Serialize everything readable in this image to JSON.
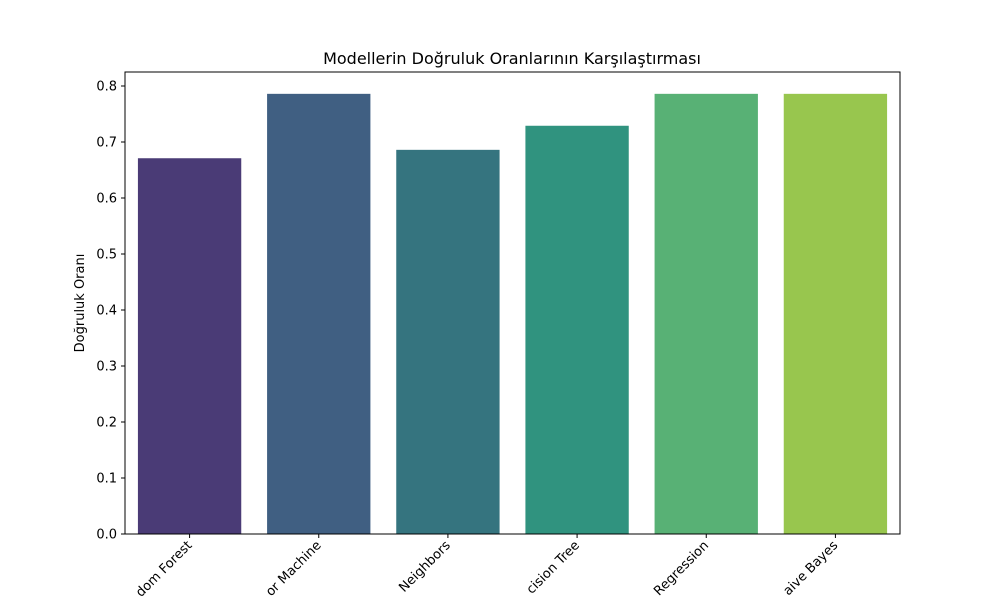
{
  "chart_data": {
    "type": "bar",
    "title": "Modellerin Doğruluk Oranlarının Karşılaştırması",
    "xlabel": "",
    "ylabel": "Doğruluk Oranı",
    "categories": [
      "Random Forest",
      "Support Vector Machine",
      "K-Nearest Neighbors",
      "Decision Tree",
      "Logistic Regression",
      "Naive Bayes"
    ],
    "visible_tick_labels": [
      "dom Forest",
      "or Machine",
      "Neighbors",
      "cision Tree",
      "Regression",
      "aive Bayes"
    ],
    "values": [
      0.671,
      0.786,
      0.686,
      0.729,
      0.786,
      0.786
    ],
    "colors": [
      "#4a3b76",
      "#405f82",
      "#35747f",
      "#30937f",
      "#58b175",
      "#98c64e"
    ],
    "ylim": [
      0,
      0.825
    ],
    "yticks": [
      0.0,
      0.1,
      0.2,
      0.3,
      0.4,
      0.5,
      0.6,
      0.7,
      0.8
    ],
    "ytick_labels": [
      "0.0",
      "0.1",
      "0.2",
      "0.3",
      "0.4",
      "0.5",
      "0.6",
      "0.7",
      "0.8"
    ],
    "grid": false,
    "legend": "none"
  }
}
